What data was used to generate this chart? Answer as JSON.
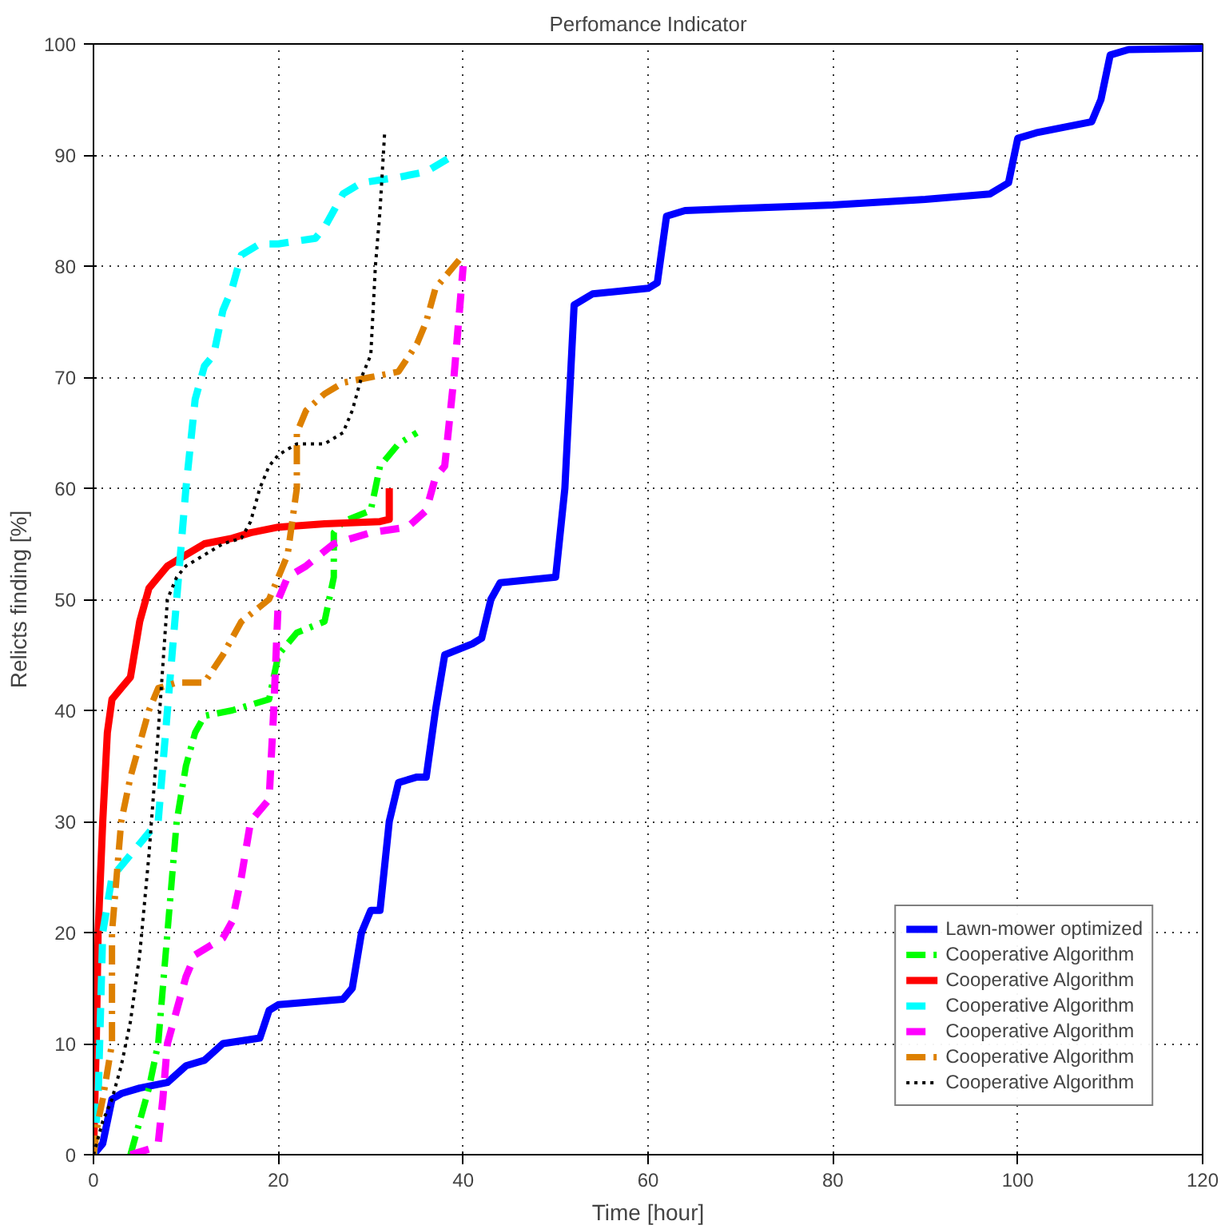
{
  "chart_data": {
    "type": "line",
    "title": "Perfomance Indicator",
    "xlabel": "Time [hour]",
    "ylabel": "Relicts finding [%]",
    "xlim": [
      0,
      120
    ],
    "ylim": [
      0,
      100
    ],
    "xticks": [
      0,
      20,
      40,
      60,
      80,
      100,
      120
    ],
    "yticks": [
      0,
      10,
      20,
      30,
      40,
      50,
      60,
      70,
      80,
      90,
      100
    ],
    "grid": true,
    "legend": "bottom right",
    "marker": "none",
    "series": [
      {
        "name": "Lawn-mower optimized",
        "color": "#0000ff",
        "line_style": "solid",
        "x": [
          0,
          1,
          2,
          3,
          5,
          8,
          10,
          12,
          14,
          18,
          19,
          20,
          27,
          28,
          29,
          30,
          31,
          32,
          33,
          35,
          36,
          37,
          38,
          41,
          42,
          43,
          44,
          50,
          51,
          52,
          54,
          60,
          61,
          62,
          64,
          70,
          80,
          90,
          97,
          99,
          100,
          102,
          108,
          109,
          110,
          112,
          120
        ],
        "values": [
          0,
          1,
          5,
          5.5,
          6,
          6.5,
          8,
          8.5,
          10,
          10.5,
          13,
          13.5,
          14,
          15,
          20,
          22,
          22,
          30,
          33.5,
          34,
          34,
          40,
          45,
          46,
          46.5,
          50,
          51.5,
          52,
          60,
          76.5,
          77.5,
          78,
          78.5,
          84.5,
          85,
          85.2,
          85.5,
          86,
          86.5,
          87.5,
          91.5,
          92,
          93,
          95,
          99,
          99.5,
          99.6
        ]
      },
      {
        "name": "Cooperative Algorithm",
        "color": "#00ff00",
        "line_style": "dashdot",
        "x": [
          4,
          5,
          6,
          7,
          7.5,
          8,
          8.5,
          9,
          10,
          11,
          12,
          15,
          19,
          20,
          22,
          25,
          26,
          26,
          27,
          30,
          31,
          33,
          35
        ],
        "values": [
          0,
          3,
          6,
          10,
          15,
          20,
          25,
          30,
          35,
          38,
          39.5,
          40,
          41,
          45,
          47,
          48,
          52,
          56,
          57,
          58,
          62,
          64,
          65
        ]
      },
      {
        "name": "Cooperative Algorithm",
        "color": "#ff0000",
        "line_style": "solid",
        "x": [
          0,
          0.3,
          0.5,
          1,
          1.5,
          2,
          3,
          4,
          5,
          6,
          7,
          8,
          10,
          12,
          15,
          17,
          20,
          25,
          31,
          32,
          32
        ],
        "values": [
          0,
          10,
          20,
          30,
          38,
          41,
          42,
          43,
          48,
          51,
          52,
          53,
          54,
          55,
          55.5,
          56,
          56.5,
          56.8,
          57,
          57.2,
          60
        ]
      },
      {
        "name": "Cooperative Algorithm",
        "color": "#00ffff",
        "line_style": "dashed",
        "x": [
          0,
          0.5,
          1,
          2,
          3,
          5,
          7,
          8,
          9,
          10,
          11,
          12,
          13,
          14,
          15,
          16,
          18,
          20,
          24,
          25,
          26,
          27,
          29,
          33,
          36,
          39
        ],
        "values": [
          0,
          5,
          20,
          25,
          26,
          28,
          30,
          40,
          50,
          60,
          68,
          71,
          72,
          76,
          78,
          81,
          82,
          82,
          82.5,
          83.5,
          85,
          86.5,
          87.5,
          88,
          88.5,
          90
        ]
      },
      {
        "name": "Cooperative Algorithm",
        "color": "#ff00ff",
        "line_style": "dashed",
        "x": [
          4,
          6,
          7,
          7.5,
          8,
          9,
          10,
          11,
          13,
          14,
          15,
          16,
          17,
          18,
          19,
          19.5,
          20,
          21,
          23,
          26,
          30,
          34,
          36,
          37,
          38,
          39,
          40
        ],
        "values": [
          0,
          0.5,
          1,
          5,
          10,
          13,
          16,
          18,
          19,
          19.5,
          21,
          25,
          30,
          31,
          32,
          40,
          50,
          52,
          53,
          55,
          56,
          56.5,
          58,
          61,
          62,
          70,
          80
        ]
      },
      {
        "name": "Cooperative Algorithm",
        "color": "#dd8000",
        "line_style": "dashdot",
        "x": [
          0,
          0.5,
          1,
          2,
          2,
          3,
          4,
          5,
          6,
          7,
          9,
          12,
          14,
          16,
          19,
          20,
          21,
          22,
          22,
          23,
          25,
          27,
          30,
          33,
          35,
          36,
          37,
          39,
          40
        ],
        "values": [
          0,
          3,
          5,
          10,
          20,
          30,
          34,
          37,
          40,
          42,
          42.5,
          42.5,
          45,
          48,
          50,
          52,
          54,
          60,
          65,
          67,
          68.5,
          69.5,
          70,
          70.5,
          73,
          75,
          78,
          80,
          81
        ]
      },
      {
        "name": "Cooperative Algorithm",
        "color": "#000000",
        "line_style": "dotted",
        "x": [
          0,
          1,
          2,
          3,
          4,
          5,
          6,
          7,
          8,
          9,
          10,
          12,
          14,
          16,
          17,
          18,
          19,
          20,
          22,
          25,
          27,
          28,
          29,
          30,
          30.5,
          31,
          31.5
        ],
        "values": [
          0,
          3,
          5,
          8,
          12,
          18,
          27,
          38,
          50,
          52,
          53,
          54,
          55,
          55.5,
          57,
          60,
          62,
          63,
          64,
          64,
          65,
          67,
          70,
          72,
          80,
          85,
          92
        ]
      }
    ]
  }
}
